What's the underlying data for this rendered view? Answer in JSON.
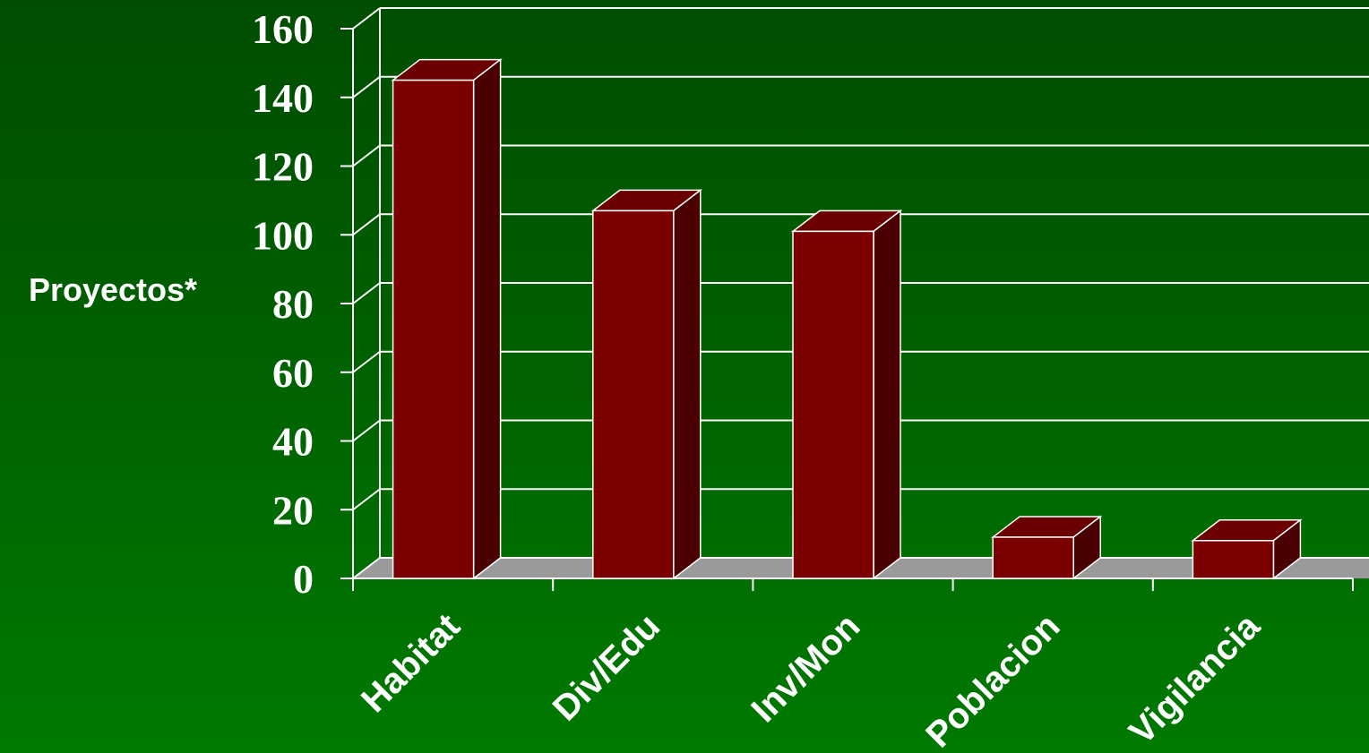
{
  "chart_data": {
    "type": "bar",
    "ylabel": "Proyectos*",
    "xlabel": "",
    "categories": [
      "Habitat",
      "Div/Edu",
      "Inv/Mon",
      "Poblacion",
      "Vigilancia"
    ],
    "values": [
      145,
      107,
      101,
      12,
      11
    ],
    "ylim": [
      0,
      160
    ],
    "yticks": [
      0,
      20,
      40,
      60,
      80,
      100,
      120,
      140,
      160
    ],
    "grid": true,
    "legend": "none",
    "style": "3d-column",
    "colors": {
      "bar_front": "#7a0000",
      "bar_top": "#6a0000",
      "bar_side": "#4a0000",
      "floor": "#9a9a9a",
      "grid": "#ffffff"
    }
  }
}
